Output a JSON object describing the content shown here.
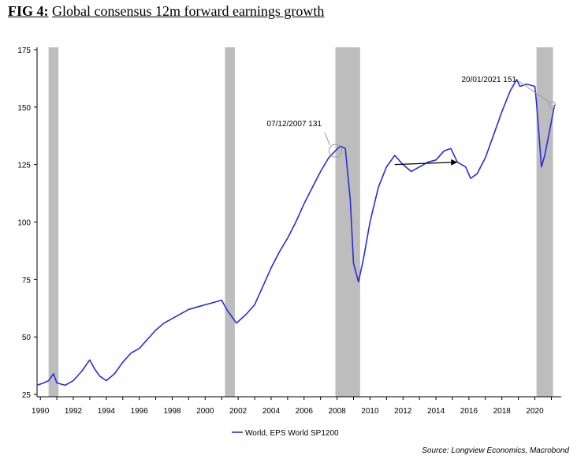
{
  "figure": {
    "label": "FIG 4:",
    "title": "Global consensus 12m forward earnings growth",
    "source": "Source: Longview Economics, Macrobond"
  },
  "colors": {
    "series": "#2b2bdc",
    "recession": "#bdbdbd",
    "annotation": "#9a9a9a",
    "arrow": "#000000"
  },
  "chart_data": {
    "type": "line",
    "title": "Global consensus 12m forward earnings growth",
    "xlabel": "",
    "ylabel": "",
    "xlim": [
      1989.8,
      2021.6
    ],
    "ylim": [
      24,
      176
    ],
    "yticks": [
      25,
      50,
      75,
      100,
      125,
      150,
      175
    ],
    "xticks": [
      1990,
      1992,
      1994,
      1996,
      1998,
      2000,
      2002,
      2004,
      2006,
      2008,
      2010,
      2012,
      2014,
      2016,
      2018,
      2020
    ],
    "grid": false,
    "legend": {
      "position": "bottom-center",
      "entries": [
        "World, EPS World SP1200"
      ]
    },
    "recession_bands": [
      [
        1990.5,
        1991.1
      ],
      [
        2001.2,
        2001.8
      ],
      [
        2007.9,
        2009.4
      ],
      [
        2020.1,
        2021.1
      ]
    ],
    "series": [
      {
        "name": "World, EPS World SP1200",
        "x": [
          1989.8,
          1990.2,
          1990.5,
          1990.8,
          1991.0,
          1991.5,
          1992.0,
          1992.5,
          1992.8,
          1993.0,
          1993.3,
          1993.6,
          1994.0,
          1994.5,
          1995.0,
          1995.5,
          1996.0,
          1996.5,
          1997.0,
          1997.5,
          1998.0,
          1998.5,
          1999.0,
          1999.5,
          2000.0,
          2000.5,
          2001.0,
          2001.3,
          2001.6,
          2001.9,
          2002.2,
          2002.5,
          2003.0,
          2003.5,
          2004.0,
          2004.5,
          2005.0,
          2005.5,
          2006.0,
          2006.5,
          2007.0,
          2007.5,
          2007.9,
          2008.2,
          2008.5,
          2008.8,
          2009.0,
          2009.3,
          2009.6,
          2010.0,
          2010.5,
          2011.0,
          2011.5,
          2012.0,
          2012.5,
          2013.0,
          2013.5,
          2014.0,
          2014.5,
          2014.9,
          2015.3,
          2015.8,
          2016.1,
          2016.5,
          2017.0,
          2017.5,
          2018.0,
          2018.5,
          2018.9,
          2019.1,
          2019.5,
          2020.0,
          2020.1,
          2020.4,
          2020.6,
          2020.9,
          2021.2
        ],
        "y": [
          29,
          30,
          31,
          34,
          30,
          29,
          31,
          35,
          38,
          40,
          36,
          33,
          31,
          34,
          39,
          43,
          45,
          49,
          53,
          56,
          58,
          60,
          62,
          63,
          64,
          65,
          66,
          62,
          59,
          56,
          58,
          60,
          64,
          72,
          80,
          87,
          93,
          100,
          108,
          115,
          122,
          128,
          131,
          133,
          132,
          110,
          82,
          74,
          84,
          100,
          115,
          124,
          129,
          125,
          122,
          124,
          126,
          127,
          131,
          132,
          126,
          124,
          119,
          121,
          128,
          138,
          148,
          157,
          162,
          159,
          160,
          159,
          152,
          124,
          129,
          140,
          151
        ]
      }
    ],
    "annotations": [
      {
        "text": "07/12/2007 131",
        "x": 2007.9,
        "y": 131
      },
      {
        "text": "20/01/2021 151",
        "x": 2021.05,
        "y": 151
      }
    ],
    "arrow": {
      "from": [
        2011.5,
        125
      ],
      "to": [
        2015.3,
        126
      ]
    }
  }
}
